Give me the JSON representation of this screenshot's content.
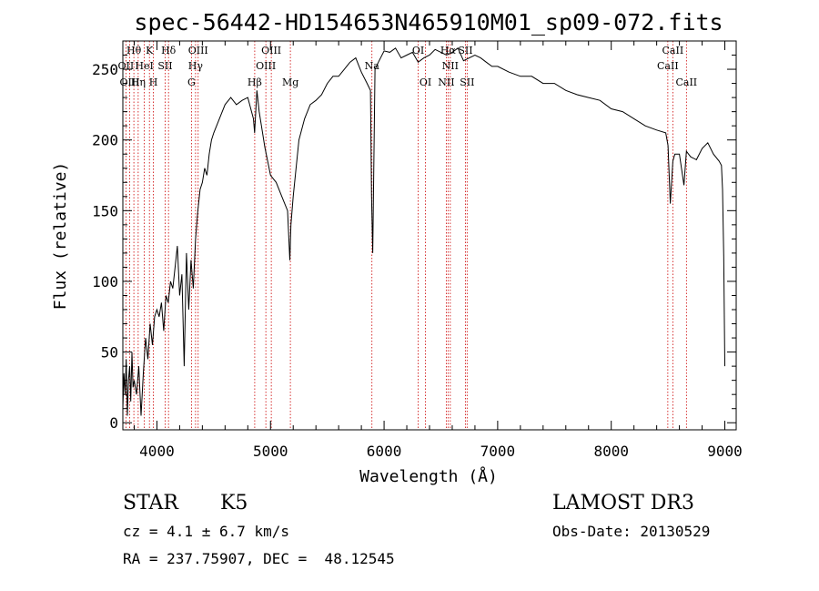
{
  "chart_data": {
    "type": "line",
    "title": "spec-56442-HD154653N465910M01_sp09-072.fits",
    "xlabel": "Wavelength (Å)",
    "ylabel": "Flux (relative)",
    "xlim": [
      3700,
      9100
    ],
    "ylim": [
      -5,
      270
    ],
    "xticks": [
      4000,
      5000,
      6000,
      7000,
      8000,
      9000
    ],
    "yticks": [
      0,
      50,
      100,
      150,
      200,
      250
    ],
    "series": [
      {
        "name": "spectrum",
        "x": [
          3700,
          3710,
          3720,
          3730,
          3740,
          3750,
          3760,
          3770,
          3780,
          3790,
          3800,
          3820,
          3840,
          3860,
          3880,
          3900,
          3920,
          3940,
          3960,
          3980,
          4000,
          4020,
          4040,
          4060,
          4080,
          4100,
          4120,
          4140,
          4160,
          4180,
          4200,
          4220,
          4240,
          4260,
          4280,
          4300,
          4320,
          4340,
          4360,
          4380,
          4400,
          4420,
          4440,
          4460,
          4480,
          4500,
          4550,
          4600,
          4650,
          4700,
          4750,
          4800,
          4850,
          4860,
          4880,
          4900,
          4920,
          4950,
          5000,
          5050,
          5100,
          5150,
          5170,
          5180,
          5200,
          5250,
          5300,
          5350,
          5400,
          5450,
          5500,
          5550,
          5600,
          5650,
          5700,
          5750,
          5800,
          5850,
          5880,
          5890,
          5900,
          5920,
          5950,
          6000,
          6050,
          6100,
          6150,
          6200,
          6250,
          6300,
          6350,
          6400,
          6450,
          6500,
          6550,
          6600,
          6650,
          6700,
          6750,
          6800,
          6850,
          6900,
          6950,
          7000,
          7100,
          7200,
          7300,
          7400,
          7500,
          7600,
          7700,
          7800,
          7900,
          8000,
          8100,
          8200,
          8300,
          8400,
          8480,
          8500,
          8520,
          8542,
          8560,
          8600,
          8640,
          8662,
          8680,
          8700,
          8750,
          8800,
          8850,
          8900,
          8950,
          8970,
          8980,
          8990,
          9000
        ],
        "y": [
          10,
          35,
          20,
          45,
          5,
          30,
          40,
          15,
          50,
          25,
          30,
          20,
          40,
          5,
          35,
          60,
          45,
          70,
          55,
          75,
          80,
          75,
          85,
          65,
          90,
          85,
          100,
          95,
          110,
          125,
          90,
          105,
          40,
          120,
          80,
          115,
          95,
          130,
          150,
          165,
          170,
          180,
          175,
          190,
          200,
          205,
          215,
          225,
          230,
          225,
          228,
          230,
          215,
          205,
          235,
          220,
          210,
          195,
          175,
          170,
          160,
          150,
          115,
          140,
          160,
          200,
          215,
          225,
          228,
          232,
          240,
          245,
          245,
          250,
          255,
          258,
          248,
          240,
          235,
          160,
          120,
          250,
          255,
          263,
          262,
          265,
          258,
          260,
          262,
          255,
          258,
          260,
          264,
          262,
          260,
          262,
          265,
          256,
          258,
          260,
          258,
          255,
          252,
          252,
          248,
          245,
          245,
          240,
          240,
          235,
          232,
          230,
          228,
          222,
          220,
          215,
          210,
          207,
          205,
          196,
          155,
          185,
          190,
          190,
          168,
          192,
          190,
          188,
          186,
          194,
          198,
          190,
          185,
          182,
          165,
          118,
          40
        ]
      }
    ],
    "lines": [
      {
        "label": "Hθ",
        "wl": 3797,
        "row": 0
      },
      {
        "label": "OII",
        "wl": 3727,
        "row": 1
      },
      {
        "label": "OIII",
        "wl": 3760,
        "row": 2
      },
      {
        "label": "Hη",
        "wl": 3835,
        "row": 2
      },
      {
        "label": "HeI",
        "wl": 3889,
        "row": 1
      },
      {
        "label": "K",
        "wl": 3934,
        "row": 0
      },
      {
        "label": "H",
        "wl": 3969,
        "row": 2
      },
      {
        "label": "SII",
        "wl": 4072,
        "row": 1
      },
      {
        "label": "Hδ",
        "wl": 4102,
        "row": 0
      },
      {
        "label": "G",
        "wl": 4304,
        "row": 2
      },
      {
        "label": "OIII",
        "wl": 4363,
        "row": 0
      },
      {
        "label": "Hγ",
        "wl": 4340,
        "row": 1
      },
      {
        "label": "Hβ",
        "wl": 4861,
        "row": 2
      },
      {
        "label": "OIII",
        "wl": 4959,
        "row": 1
      },
      {
        "label": "OIII",
        "wl": 5007,
        "row": 0
      },
      {
        "label": "Mg",
        "wl": 5175,
        "row": 2
      },
      {
        "label": "Na",
        "wl": 5893,
        "row": 1
      },
      {
        "label": "OI",
        "wl": 6300,
        "row": 0
      },
      {
        "label": "OI",
        "wl": 6364,
        "row": 2
      },
      {
        "label": "NII",
        "wl": 6548,
        "row": 2
      },
      {
        "label": "Hα",
        "wl": 6563,
        "row": 0
      },
      {
        "label": "NII",
        "wl": 6583,
        "row": 1
      },
      {
        "label": "SII",
        "wl": 6716,
        "row": 0
      },
      {
        "label": "SII",
        "wl": 6731,
        "row": 2
      },
      {
        "label": "CaII",
        "wl": 8498,
        "row": 1
      },
      {
        "label": "CaII",
        "wl": 8542,
        "row": 0
      },
      {
        "label": "CaII",
        "wl": 8662,
        "row": 2
      }
    ]
  },
  "info": {
    "object_class": "STAR",
    "subclass": "K5",
    "survey": "LAMOST DR3",
    "cz": "cz = 4.1 ± 6.7 km/s",
    "obs_date": "Obs-Date: 20130529",
    "coords": "RA = 237.75907, DEC =  48.12545"
  },
  "colors": {
    "line": "#000000",
    "marker": "#cc0000"
  }
}
